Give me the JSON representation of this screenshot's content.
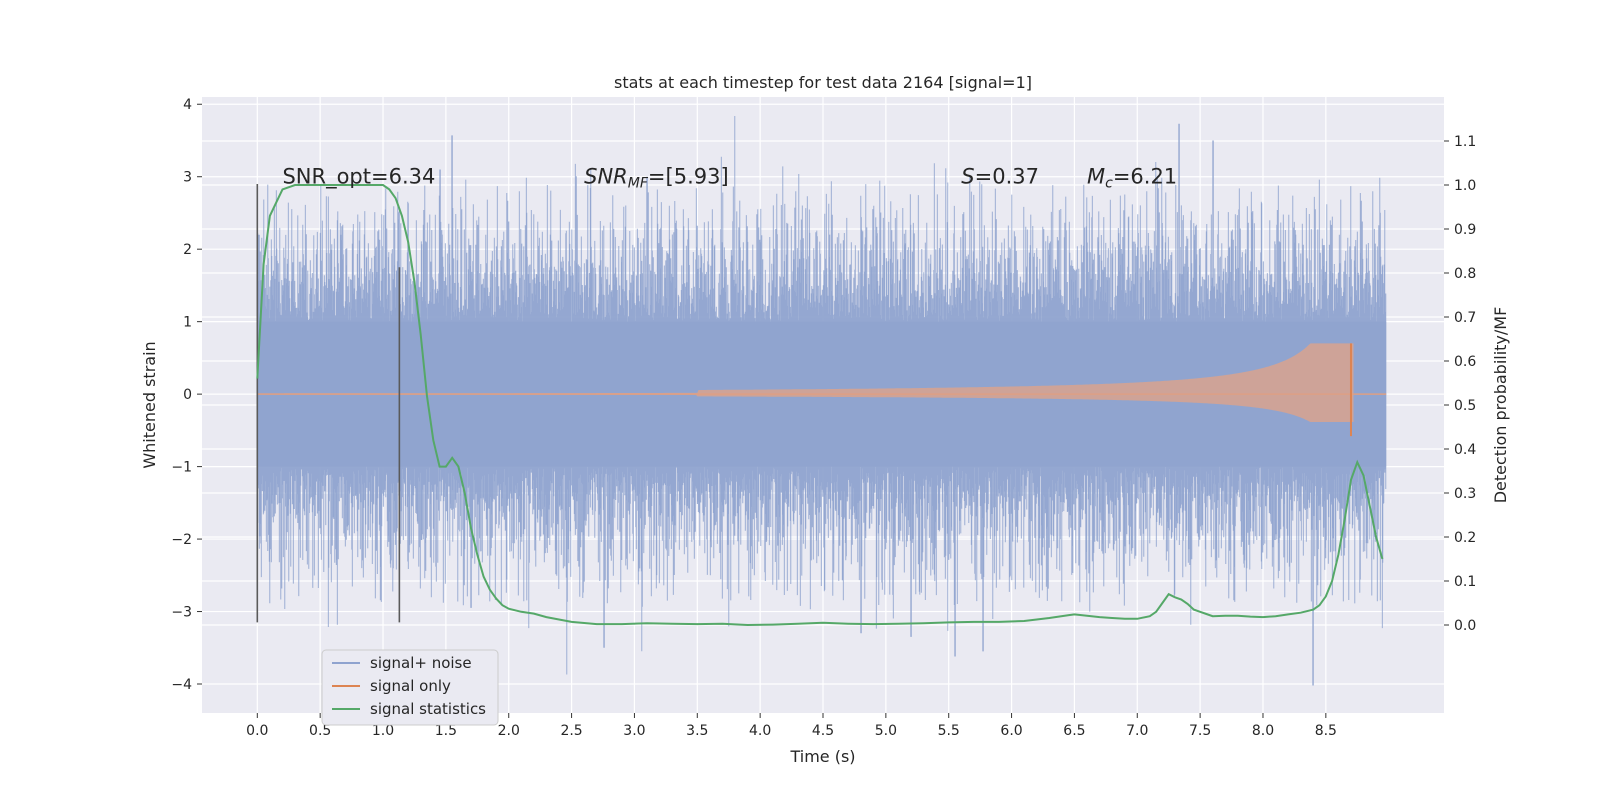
{
  "chart_data": {
    "type": "line",
    "title": "stats at each timestep for test data 2164 [signal=1]",
    "xlabel": "Time (s)",
    "ylabel_left": "Whitened strain",
    "ylabel_right": "Detection probability/MF",
    "xlim": [
      -0.44,
      9.44
    ],
    "ylim_left": [
      -4.4,
      4.1
    ],
    "ylim_right": [
      -0.2,
      1.2
    ],
    "x_ticks": [
      "0.0",
      "0.5",
      "1.0",
      "1.5",
      "2.0",
      "2.5",
      "3.0",
      "3.5",
      "4.0",
      "4.5",
      "5.0",
      "5.5",
      "6.0",
      "6.5",
      "7.0",
      "7.5",
      "8.0",
      "8.5"
    ],
    "y_ticks_left": [
      "−4",
      "−3",
      "−2",
      "−1",
      "0",
      "1",
      "2",
      "3",
      "4"
    ],
    "y_ticks_right": [
      "0.0",
      "0.1",
      "0.2",
      "0.3",
      "0.4",
      "0.5",
      "0.6",
      "0.7",
      "0.8",
      "0.9",
      "1.0",
      "1.1"
    ],
    "grid": true,
    "legend_position": "lower-left",
    "annotations": [
      {
        "text": "SNR_opt=6.34",
        "x": 0.2,
        "y": 3.0,
        "italic": false
      },
      {
        "text": "SNR",
        "sub": "MF",
        "suffix": "=[5.93]",
        "x": 2.6,
        "y": 3.0,
        "italic": true
      },
      {
        "text": "S",
        "suffix": "=0.37",
        "x": 5.6,
        "y": 3.0,
        "italic": true
      },
      {
        "text": "M",
        "sub": "c",
        "suffix": "=6.21",
        "x": 6.6,
        "y": 3.0,
        "italic": true
      }
    ],
    "vertical_markers": [
      {
        "x": 0.0,
        "ymin": -3.15,
        "ymax": 2.9
      },
      {
        "x": 1.13,
        "ymin": -3.15,
        "ymax": 1.75
      }
    ],
    "series": [
      {
        "name": "signal+ noise",
        "color": "#8fa3cf",
        "axis": "left",
        "kind": "noise",
        "x_range": [
          0.0,
          8.98
        ],
        "envelope_extremes": [
          {
            "x": 1.55,
            "y": 3.57
          },
          {
            "x": 7.33,
            "y": 3.73
          },
          {
            "x": 7.6,
            "y": 3.5
          },
          {
            "x": 0.01,
            "y": 2.2
          },
          {
            "x": 1.45,
            "y": 3.1
          },
          {
            "x": 3.1,
            "y": 3.0
          },
          {
            "x": 8.4,
            "y": -4.02
          },
          {
            "x": 2.76,
            "y": -3.5
          },
          {
            "x": 5.55,
            "y": -3.62
          },
          {
            "x": 5.77,
            "y": -3.55
          },
          {
            "x": 4.8,
            "y": -3.3
          },
          {
            "x": 5.2,
            "y": -3.35
          },
          {
            "x": 1.7,
            "y": -2.95
          },
          {
            "x": 0.0,
            "y": -2.8
          }
        ]
      },
      {
        "name": "signal only",
        "color": "#dd8452",
        "axis": "left",
        "kind": "chirp",
        "x_range": [
          0.0,
          8.98
        ],
        "peak": {
          "x": 8.7,
          "amplitude": 0.7
        },
        "end_x": 8.72
      },
      {
        "name": "signal statistics",
        "color": "#55a868",
        "axis": "right",
        "kind": "line",
        "x": [
          0.0,
          0.05,
          0.1,
          0.15,
          0.2,
          0.3,
          0.5,
          0.7,
          0.9,
          1.0,
          1.05,
          1.1,
          1.15,
          1.2,
          1.25,
          1.3,
          1.35,
          1.4,
          1.45,
          1.5,
          1.55,
          1.6,
          1.65,
          1.7,
          1.75,
          1.8,
          1.85,
          1.9,
          1.95,
          2.0,
          2.1,
          2.2,
          2.3,
          2.5,
          2.7,
          2.9,
          3.1,
          3.3,
          3.5,
          3.7,
          3.9,
          4.1,
          4.3,
          4.5,
          4.7,
          4.9,
          5.1,
          5.3,
          5.5,
          5.7,
          5.9,
          6.1,
          6.3,
          6.45,
          6.5,
          6.6,
          6.7,
          6.8,
          6.9,
          7.0,
          7.1,
          7.15,
          7.2,
          7.25,
          7.3,
          7.35,
          7.4,
          7.45,
          7.5,
          7.55,
          7.6,
          7.7,
          7.8,
          7.9,
          8.0,
          8.1,
          8.2,
          8.3,
          8.4,
          8.45,
          8.5,
          8.55,
          8.6,
          8.65,
          8.7,
          8.75,
          8.8,
          8.85,
          8.9,
          8.95
        ],
        "y": [
          0.56,
          0.82,
          0.93,
          0.96,
          0.99,
          1.0,
          1.0,
          1.0,
          1.0,
          1.0,
          0.99,
          0.97,
          0.93,
          0.87,
          0.78,
          0.66,
          0.52,
          0.42,
          0.36,
          0.36,
          0.38,
          0.36,
          0.3,
          0.22,
          0.16,
          0.11,
          0.08,
          0.06,
          0.045,
          0.037,
          0.03,
          0.026,
          0.018,
          0.007,
          0.002,
          0.002,
          0.004,
          0.003,
          0.002,
          0.003,
          0.0,
          0.001,
          0.003,
          0.005,
          0.003,
          0.002,
          0.003,
          0.004,
          0.006,
          0.007,
          0.007,
          0.009,
          0.016,
          0.022,
          0.024,
          0.021,
          0.018,
          0.016,
          0.014,
          0.014,
          0.02,
          0.03,
          0.05,
          0.07,
          0.063,
          0.058,
          0.048,
          0.035,
          0.03,
          0.025,
          0.02,
          0.021,
          0.021,
          0.019,
          0.018,
          0.02,
          0.024,
          0.028,
          0.035,
          0.045,
          0.065,
          0.1,
          0.16,
          0.24,
          0.33,
          0.37,
          0.34,
          0.27,
          0.2,
          0.15
        ]
      }
    ]
  }
}
